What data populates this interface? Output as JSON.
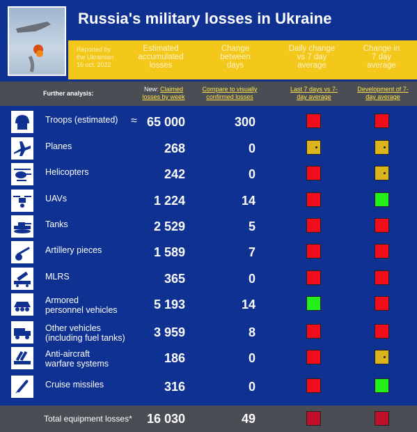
{
  "header": {
    "title": "Russia's military losses in Ukraine",
    "date_label": "Reported by\nthe Ukrainian\n16 oct. 2022",
    "columns": [
      "Estimated\naccumulated\nlosses",
      "Change\nbetween\ndays",
      "Daily change\nvs 7 day\naverage",
      "Change in\n7 day\naverage"
    ]
  },
  "subheader": {
    "further": "Further analysis:",
    "new_prefix": "New:",
    "claimed": "Claimed losses by week",
    "compare": "Compare to visually confirmed losses",
    "last7": "Last 7 days vs 7-day average",
    "development": "Development of 7-day average"
  },
  "colors": {
    "red": "#f20d1c",
    "green": "#23f01b",
    "yellow": "#dbb51b"
  },
  "rows": [
    {
      "icon": "soldier-helmet-icon",
      "label": "Troops (estimated)",
      "approx": "≈",
      "value": "65 000",
      "change": "300",
      "daily": "red",
      "avg": "red"
    },
    {
      "icon": "plane-icon",
      "label": "Planes",
      "value": "268",
      "change": "0",
      "daily": "yellow",
      "avg": "yellow"
    },
    {
      "icon": "helicopter-icon",
      "label": "Helicopters",
      "value": "242",
      "change": "0",
      "daily": "red",
      "avg": "yellow"
    },
    {
      "icon": "drone-icon",
      "label": "UAVs",
      "value": "1 224",
      "change": "14",
      "daily": "red",
      "avg": "green"
    },
    {
      "icon": "tank-icon",
      "label": "Tanks",
      "value": "2 529",
      "change": "5",
      "daily": "red",
      "avg": "red"
    },
    {
      "icon": "artillery-icon",
      "label": "Artillery pieces",
      "value": "1 589",
      "change": "7",
      "daily": "red",
      "avg": "red"
    },
    {
      "icon": "rocket-launcher-icon",
      "label": "MLRS",
      "value": "365",
      "change": "0",
      "daily": "red",
      "avg": "red"
    },
    {
      "icon": "apc-icon",
      "label": "Armored\npersonnel vehicles",
      "value": "5 193",
      "change": "14",
      "daily": "green",
      "avg": "red"
    },
    {
      "icon": "truck-icon",
      "label": "Other vehicles\n(including fuel tanks)",
      "value": "3 959",
      "change": "8",
      "daily": "red",
      "avg": "red"
    },
    {
      "icon": "anti-aircraft-icon",
      "label": "Anti-aircraft\nwarfare systems",
      "value": "186",
      "change": "0",
      "daily": "red",
      "avg": "yellow"
    },
    {
      "icon": "missile-icon",
      "label": "Cruise missiles",
      "value": "316",
      "change": "0",
      "daily": "red",
      "avg": "green"
    }
  ],
  "footer": {
    "label": "Total equipment losses*",
    "value": "16 030",
    "change": "49"
  }
}
